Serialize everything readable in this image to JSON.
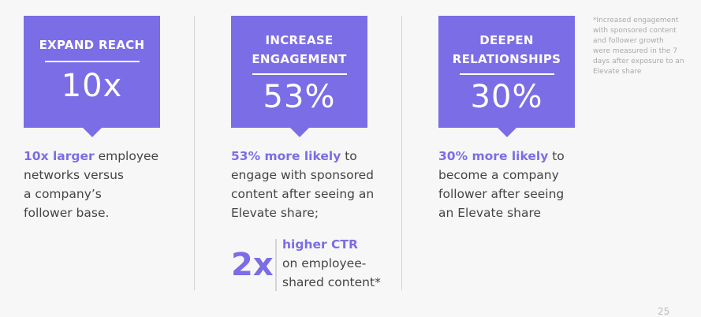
{
  "colors": {
    "accent": "#7b6de6",
    "text": "#444444",
    "footnote": "#aaaaaa",
    "background": "#f7f7f7"
  },
  "cards": [
    {
      "title_lines": [
        "EXPAND REACH"
      ],
      "value": "10x",
      "desc_highlight": "10x larger",
      "desc_rest_first": " employee",
      "desc_lines": [
        "networks versus",
        "a company’s",
        "follower base."
      ]
    },
    {
      "title_lines": [
        "INCREASE",
        "ENGAGEMENT"
      ],
      "value": "53%",
      "desc_highlight": "53% more likely",
      "desc_rest_first": " to",
      "desc_lines": [
        "engage with sponsored",
        "content after seeing an",
        "Elevate share;"
      ]
    },
    {
      "title_lines": [
        "DEEPEN",
        "RELATIONSHIPS"
      ],
      "value": "30%",
      "desc_highlight": "30% more likely",
      "desc_rest_first": " to",
      "desc_lines": [
        "become a company",
        "follower after seeing",
        "an Elevate share"
      ]
    }
  ],
  "ctr": {
    "big": "2x",
    "highlight": "higher CTR",
    "lines": [
      "on employee-",
      "shared content*"
    ]
  },
  "footnote_lines": [
    "*Increased engagement",
    "with sponsored content",
    "and follower growth",
    "were measured in the 7",
    "days after exposure to an",
    "Elevate share"
  ],
  "page_number": "25"
}
